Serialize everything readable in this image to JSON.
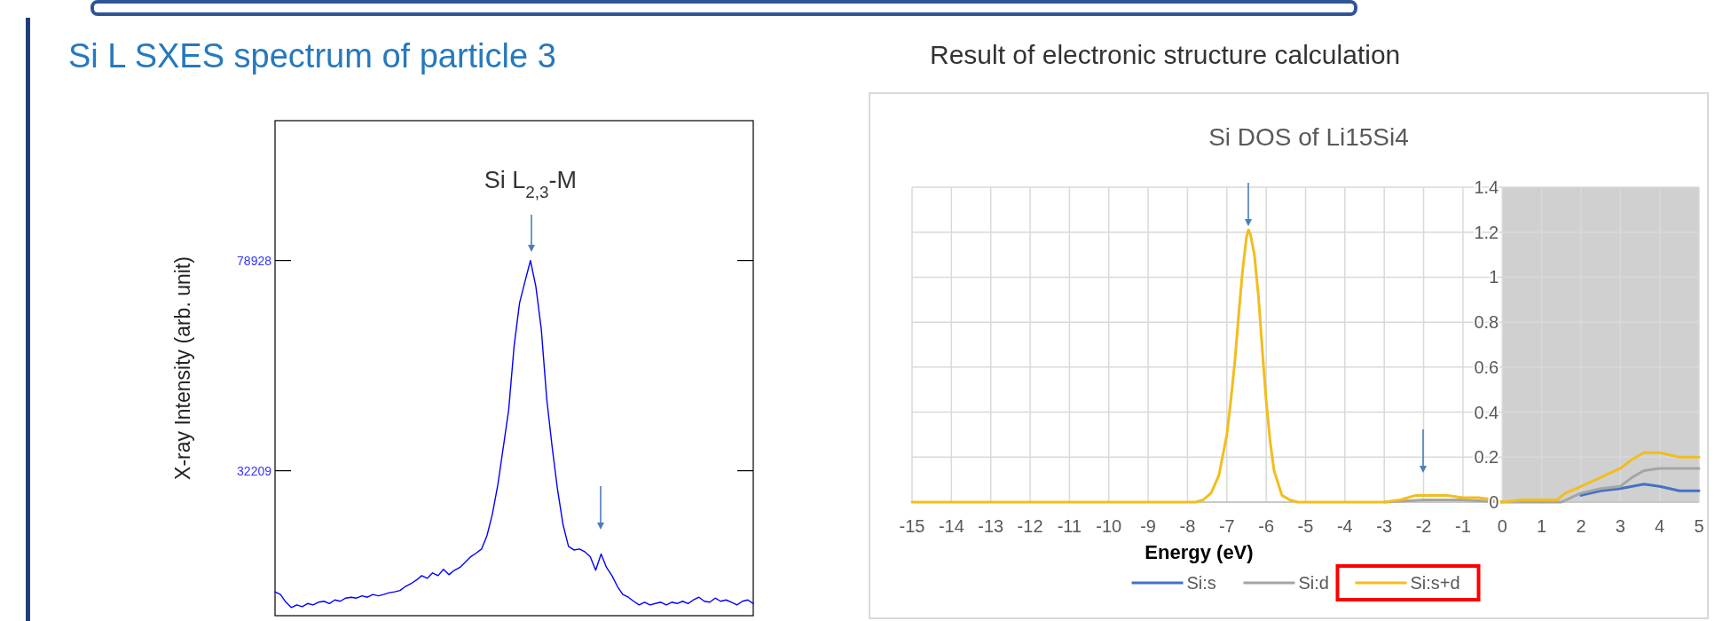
{
  "chart_data": [
    {
      "type": "line",
      "title": "Si L SXES spectrum of particle 3",
      "ylabel": "X-ray  Intensity  (arb. unit)",
      "annotations": [
        {
          "text": "Si L$_{2,3}$-M",
          "y": 78928
        }
      ],
      "tick_labels": "y",
      "ylim": [
        0,
        110000
      ],
      "yticks": [
        32209,
        78928
      ],
      "categories": [
        null,
        null,
        null,
        null,
        null,
        null,
        null,
        null,
        null,
        null,
        null,
        null,
        null,
        null,
        null,
        null,
        null,
        null,
        null,
        null,
        null,
        null,
        null,
        null,
        null,
        null,
        null,
        null,
        null,
        null,
        null,
        null,
        null,
        null,
        null,
        null,
        null,
        null,
        null,
        null,
        null,
        null,
        null,
        null,
        null,
        null,
        null,
        null,
        null,
        null,
        null,
        null,
        null,
        null,
        null,
        null,
        null,
        null,
        null,
        null,
        null,
        null,
        null,
        null,
        null,
        null,
        null,
        null,
        null,
        null,
        null,
        null,
        null,
        null,
        null,
        null,
        null,
        null,
        null,
        null,
        null,
        null,
        null,
        null,
        null,
        null,
        null,
        null,
        null
      ],
      "series": [
        {
          "color": "#0000ff",
          "values": [
            5300,
            4700,
            3000,
            1800,
            2400,
            2000,
            2700,
            2400,
            3000,
            3200,
            2700,
            3500,
            3200,
            3900,
            4100,
            3900,
            4400,
            4100,
            4700,
            4400,
            4700,
            5100,
            5300,
            5600,
            6500,
            7100,
            7900,
            8900,
            8300,
            9500,
            8900,
            10300,
            9100,
            10100,
            10700,
            11900,
            13100,
            13900,
            14800,
            17800,
            22600,
            29100,
            37400,
            45800,
            60000,
            69500,
            74300,
            78900,
            73100,
            63600,
            48100,
            37400,
            27900,
            20200,
            15400,
            14600,
            14800,
            14200,
            13100,
            10100,
            13700,
            10700,
            8900,
            6500,
            4700,
            4100,
            3200,
            2400,
            3000,
            2400,
            2700,
            3000,
            2400,
            3000,
            2700,
            3200,
            2700,
            3500,
            4100,
            3200,
            3000,
            3900,
            3200,
            3500,
            3000,
            2400,
            3200,
            3500,
            2700
          ]
        }
      ]
    },
    {
      "type": "line",
      "title": "Si DOS of Li15Si4",
      "xlabel": "Energy (eV)",
      "annotations": [
        "Result of electronic structure calculation"
      ],
      "xlim": [
        -15,
        5
      ],
      "xticks": [
        -15,
        -14,
        -13,
        -12,
        -11,
        -10,
        -9,
        -8,
        -7,
        -6,
        -5,
        -4,
        -3,
        -2,
        -1,
        0,
        1,
        2,
        3,
        4,
        5
      ],
      "ylim": [
        0,
        1.4
      ],
      "yticks": [
        0,
        0.2,
        0.4,
        0.6,
        0.8,
        1,
        1.2,
        1.4
      ],
      "grid": true,
      "legend": "bottom",
      "bands": [
        {
          "axis": "x",
          "from": 0,
          "to": 5,
          "color": "#d0d0d0"
        }
      ],
      "series": [
        {
          "name": "Si:s",
          "color": "#4472c4",
          "x": [
            2,
            2.5,
            3,
            3.3,
            3.6,
            4,
            4.5,
            5
          ],
          "values": [
            0.03,
            0.05,
            0.06,
            0.07,
            0.08,
            0.07,
            0.05,
            0.05
          ]
        },
        {
          "name": "Si:d",
          "color": "#a5a5a5",
          "x": [
            -3,
            -2,
            -1,
            0,
            1,
            1.5,
            2,
            2.5,
            3,
            3.3,
            3.6,
            4,
            4.5,
            5
          ],
          "values": [
            0,
            0.01,
            0.01,
            0,
            0,
            0,
            0.04,
            0.06,
            0.07,
            0.11,
            0.14,
            0.15,
            0.15,
            0.15
          ]
        },
        {
          "name": "Si:s+d",
          "color": "#f2bd1d",
          "x": [
            -15,
            -8,
            -7.8,
            -7.6,
            -7.4,
            -7.2,
            -7.0,
            -6.9,
            -6.8,
            -6.7,
            -6.6,
            -6.5,
            -6.45,
            -6.4,
            -6.3,
            -6.2,
            -6.1,
            -6.0,
            -5.9,
            -5.8,
            -5.6,
            -5.4,
            -5.2,
            -3,
            -2.6,
            -2.2,
            -1.8,
            -1.4,
            -1,
            -0.6,
            -0.2,
            0,
            0.5,
            1,
            1.4,
            1.6,
            2,
            2.5,
            3,
            3.3,
            3.6,
            4,
            4.5,
            5
          ],
          "values": [
            0,
            0,
            0,
            0.01,
            0.04,
            0.12,
            0.3,
            0.45,
            0.62,
            0.83,
            1.03,
            1.18,
            1.21,
            1.19,
            1.1,
            0.92,
            0.68,
            0.45,
            0.27,
            0.14,
            0.03,
            0.01,
            0,
            0,
            0.01,
            0.03,
            0.03,
            0.03,
            0.02,
            0.02,
            0.01,
            0,
            0.01,
            0.01,
            0.01,
            0.04,
            0.07,
            0.11,
            0.15,
            0.19,
            0.22,
            0.22,
            0.2,
            0.2
          ]
        }
      ]
    }
  ]
}
